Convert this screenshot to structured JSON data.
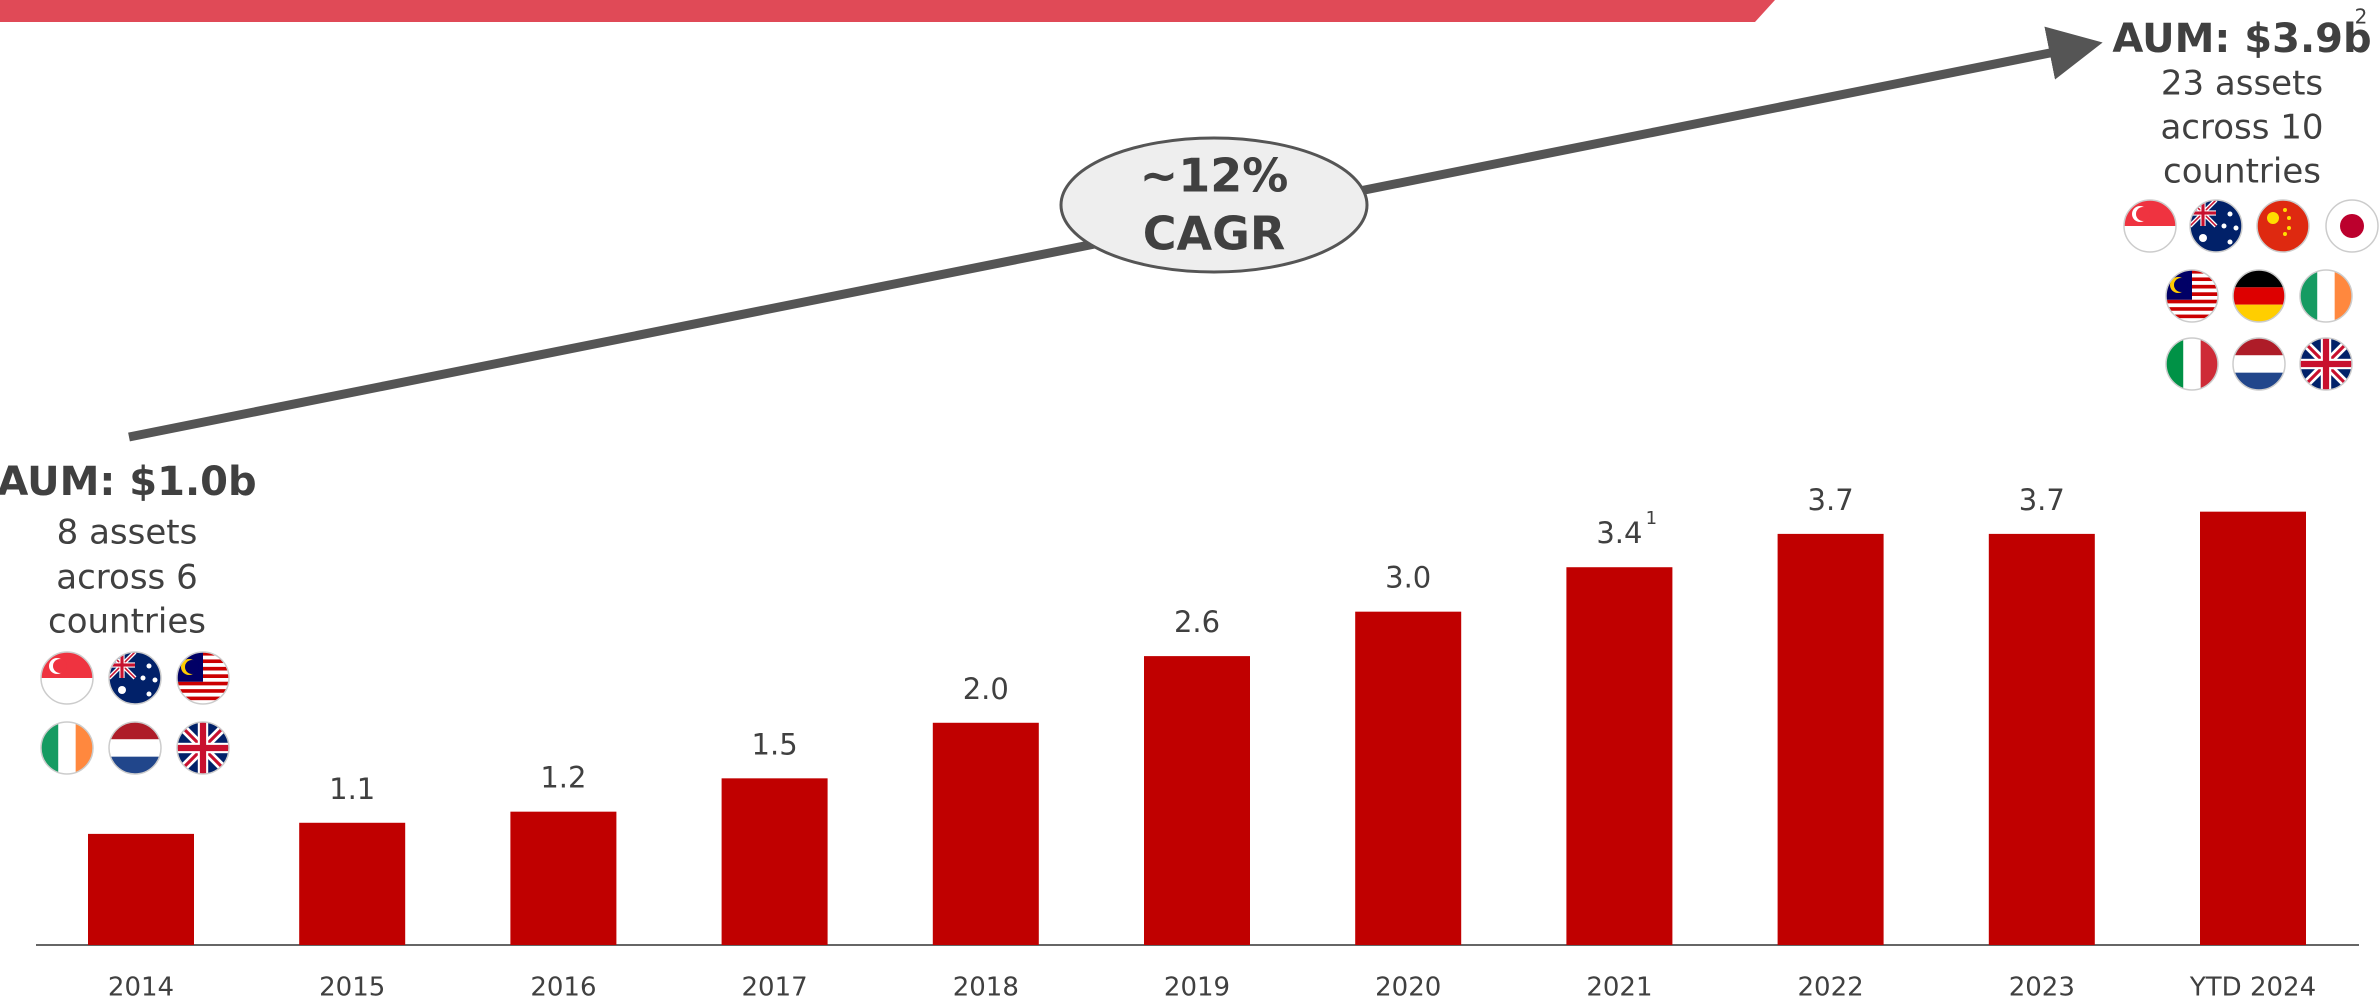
{
  "chart_data": {
    "type": "bar",
    "categories": [
      "2014",
      "2015",
      "2016",
      "2017",
      "2018",
      "2019",
      "2020",
      "2021",
      "2022",
      "2023",
      "YTD 2024"
    ],
    "values": [
      1.0,
      1.1,
      1.2,
      1.5,
      2.0,
      2.6,
      3.0,
      3.4,
      3.7,
      3.7,
      3.9
    ],
    "value_labels": [
      null,
      "1.1",
      "1.2",
      "1.5",
      "2.0",
      "2.6",
      "3.0",
      "3.4",
      "3.7",
      "3.7",
      null
    ],
    "value_label_footnotes": [
      null,
      null,
      null,
      null,
      null,
      null,
      null,
      "1",
      null,
      null,
      null
    ],
    "color": "#c00000",
    "ylim": [
      0,
      4.5
    ],
    "annotations": {
      "start": {
        "title": "AUM: $1.0b",
        "lines": [
          "8 assets",
          "across 6",
          "countries"
        ]
      },
      "end": {
        "title": "AUM: $3.9b",
        "footnote": "2",
        "lines": [
          "23 assets",
          "across 10",
          "countries"
        ]
      },
      "growth": {
        "lines": [
          "~12%",
          "CAGR"
        ]
      }
    }
  }
}
